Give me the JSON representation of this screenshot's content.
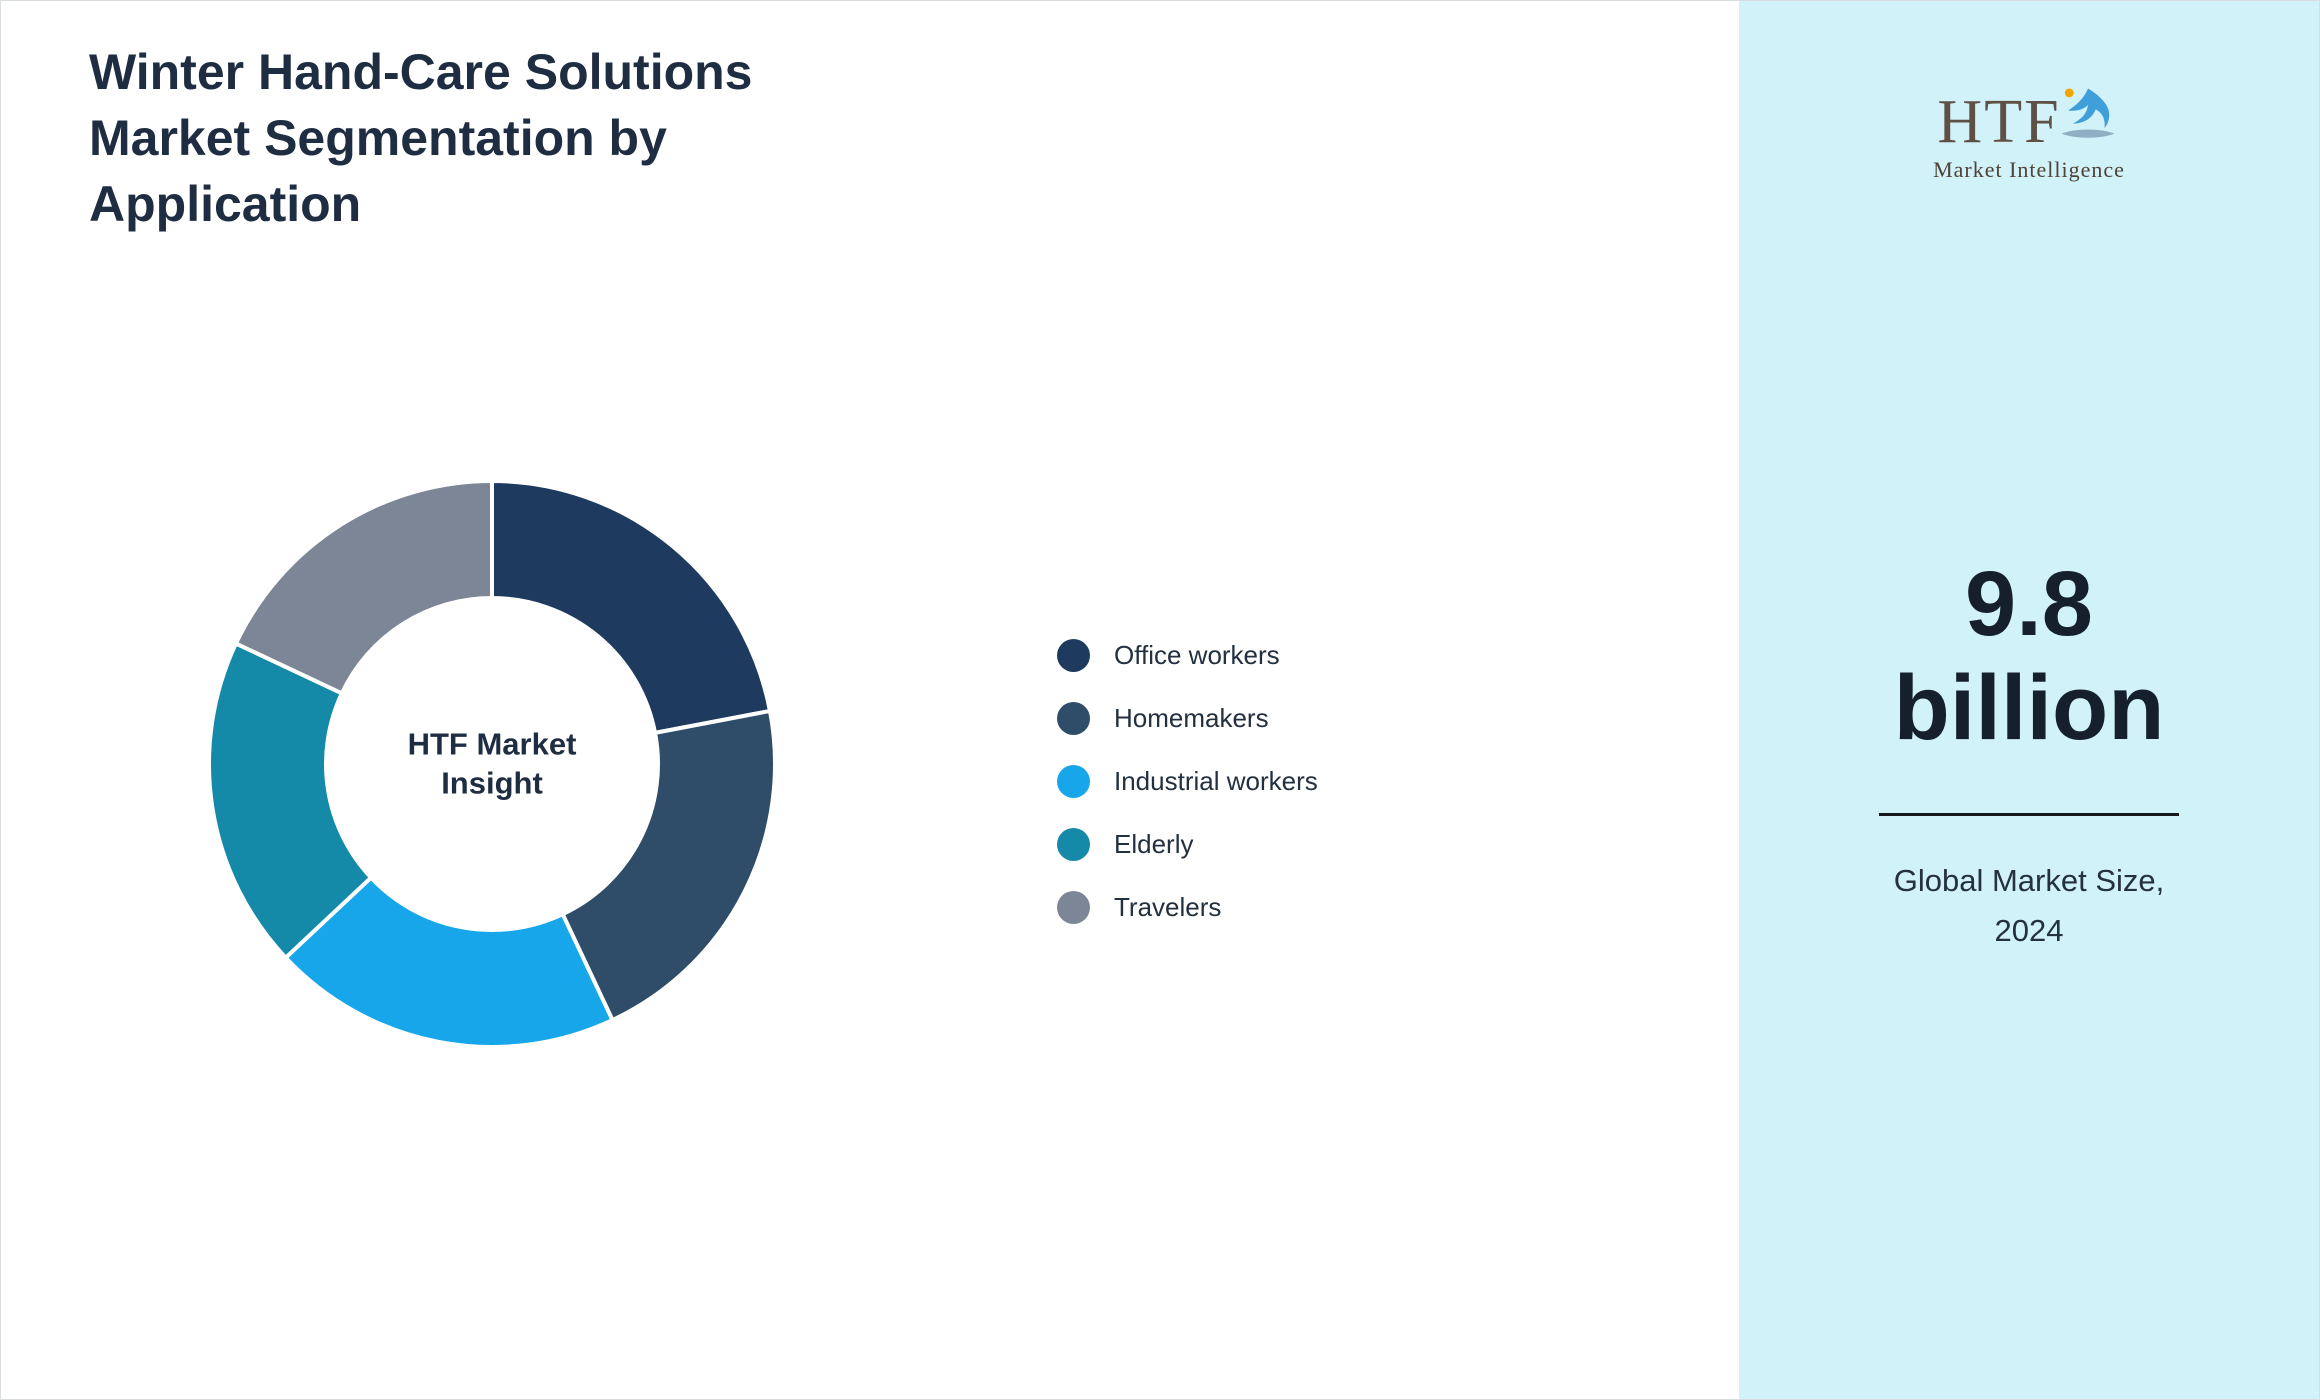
{
  "title": "Winter Hand-Care Solutions\nMarket Segmentation by\nApplication",
  "logo": {
    "text": "HTF",
    "subtext": "Market Intelligence"
  },
  "market_size": {
    "value": "9.8\nbillion",
    "caption": "Global Market Size,\n2024"
  },
  "chart_data": {
    "type": "pie",
    "subtype": "donut",
    "title": "Winter Hand-Care Solutions Market Segmentation by Application",
    "center_label": "HTF Market Insight",
    "categories": [
      "Office workers",
      "Homemakers",
      "Industrial workers",
      "Elderly",
      "Travelers"
    ],
    "values": [
      22,
      21,
      20,
      19,
      18
    ],
    "unit": "percent-share (estimated from arc angles, no data labels shown)",
    "colors": [
      "#1e3a5f",
      "#2f4d68",
      "#18a6ea",
      "#1489a8",
      "#7c8696"
    ],
    "legend_position": "right",
    "start_angle_deg": 0,
    "direction": "clockwise",
    "donut_hole_ratio": 0.58
  }
}
